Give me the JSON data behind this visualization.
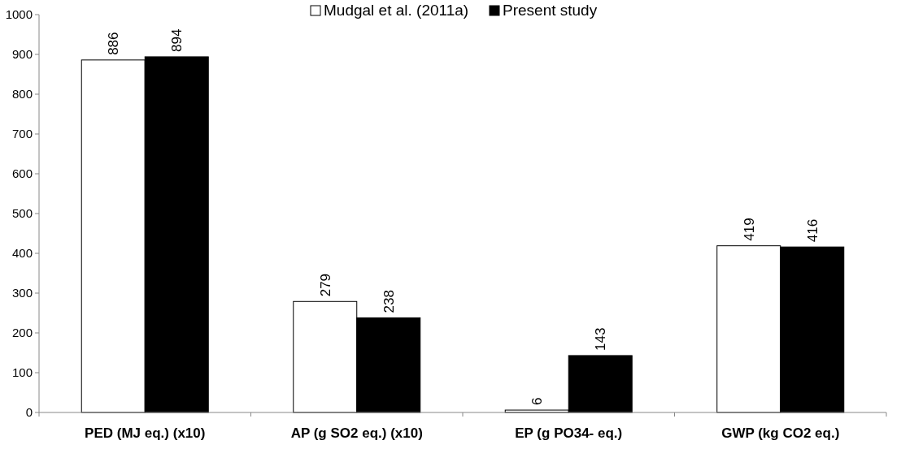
{
  "chart_data": {
    "type": "bar",
    "categories": [
      "PED (MJ eq.) (x10)",
      "AP (g SO2 eq.) (x10)",
      "EP (g PO34- eq.)",
      "GWP (kg CO2 eq.)"
    ],
    "series": [
      {
        "name": "Mudgal et al. (2011a)",
        "color": "#ffffff",
        "values": [
          886,
          279,
          6,
          419
        ]
      },
      {
        "name": "Present study",
        "color": "#000000",
        "values": [
          894,
          238,
          143,
          416
        ]
      }
    ],
    "ylim": [
      0,
      1000
    ],
    "yticks": [
      0,
      100,
      200,
      300,
      400,
      500,
      600,
      700,
      800,
      900,
      1000
    ],
    "data_labels": true,
    "legend": "top",
    "grid": false
  }
}
